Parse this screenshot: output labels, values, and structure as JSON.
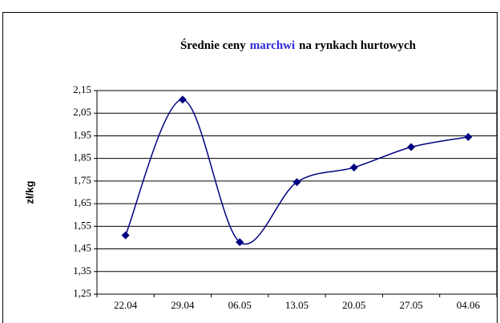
{
  "chart_data": {
    "type": "line",
    "title": [
      "Średnie ceny",
      "marchwi",
      "na rynkach hurtowych"
    ],
    "title_highlight": {
      "index": 1,
      "color": "#2b2bd6"
    },
    "ylabel": "zł/kg",
    "categories": [
      "22.04",
      "29.04",
      "06.05",
      "13.05",
      "20.05",
      "27.05",
      "04.06"
    ],
    "series": [
      {
        "color": "#000080",
        "values": [
          1.51,
          2.11,
          1.48,
          1.745,
          1.81,
          1.9,
          1.945
        ]
      }
    ],
    "smooth": true,
    "ylim": [
      1.25,
      2.15
    ],
    "yticks": [
      {
        "value": 1.25,
        "label": "1,25"
      },
      {
        "value": 1.35,
        "label": "1,35"
      },
      {
        "value": 1.45,
        "label": "1,45"
      },
      {
        "value": 1.55,
        "label": "1,55"
      },
      {
        "value": 1.65,
        "label": "1,65"
      },
      {
        "value": 1.75,
        "label": "1,75"
      },
      {
        "value": 1.85,
        "label": "1,85"
      },
      {
        "value": 1.95,
        "label": "1,95"
      },
      {
        "value": 2.05,
        "label": "2,05"
      },
      {
        "value": 2.15,
        "label": "2,15"
      }
    ],
    "grid": true
  }
}
